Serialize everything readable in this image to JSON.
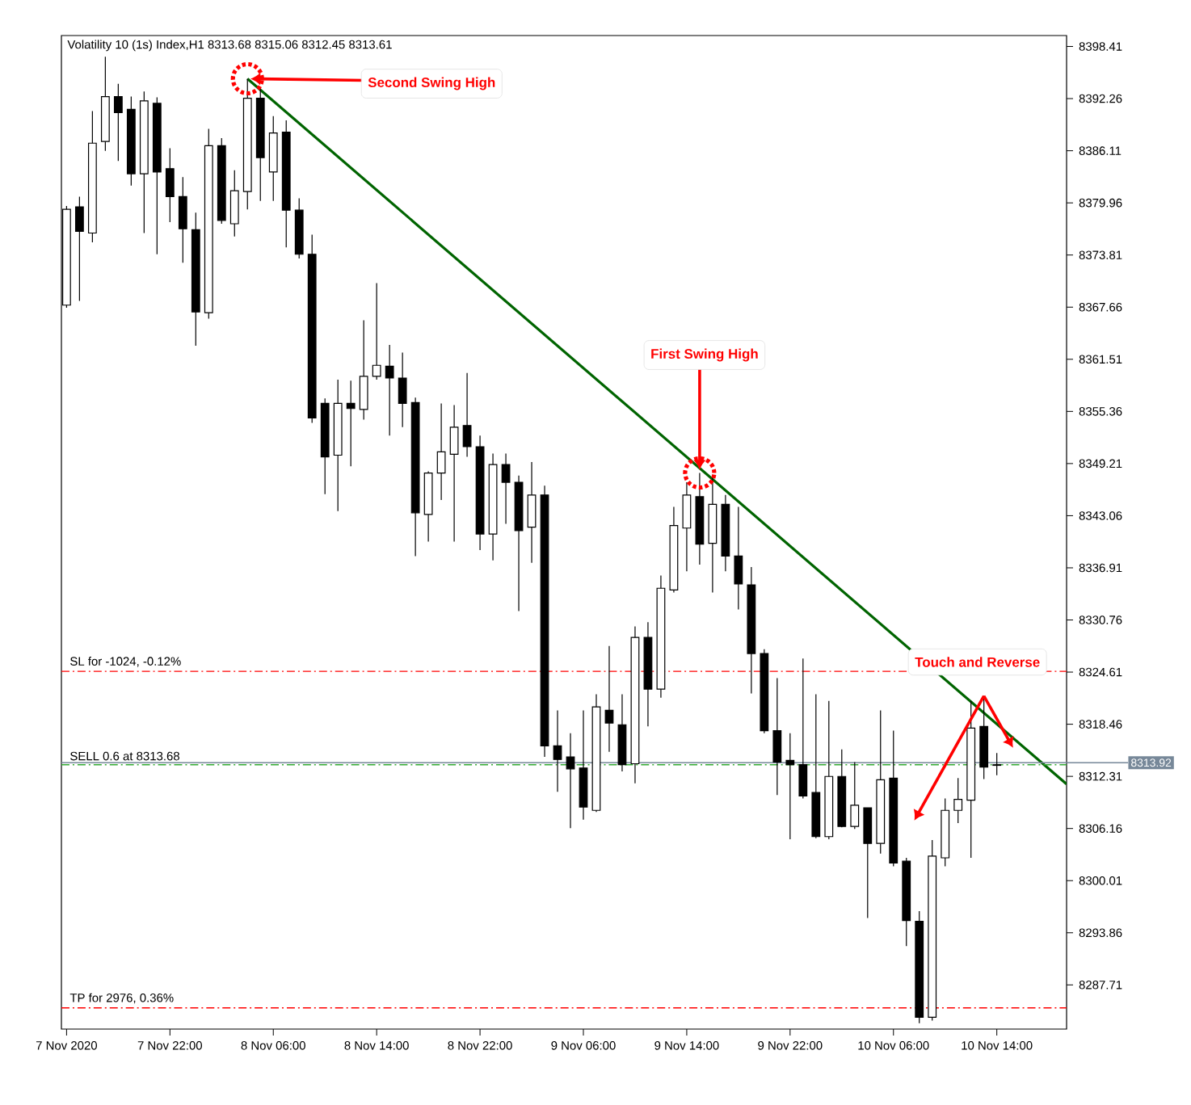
{
  "chart_data": {
    "type": "candlestick",
    "title": "Volatility 10 (1s) Index,H1  8313.68 8315.06 8312.45 8313.61",
    "x": [
      "2020-11-07T14:00",
      "2020-11-07T15:00",
      "2020-11-07T16:00",
      "2020-11-07T17:00",
      "2020-11-07T18:00",
      "2020-11-07T19:00",
      "2020-11-07T20:00",
      "2020-11-07T21:00",
      "2020-11-07T22:00",
      "2020-11-07T23:00",
      "2020-11-08T00:00",
      "2020-11-08T01:00",
      "2020-11-08T02:00",
      "2020-11-08T03:00",
      "2020-11-08T04:00",
      "2020-11-08T05:00",
      "2020-11-08T06:00",
      "2020-11-08T07:00",
      "2020-11-08T08:00",
      "2020-11-08T09:00",
      "2020-11-08T10:00",
      "2020-11-08T11:00",
      "2020-11-08T12:00",
      "2020-11-08T13:00",
      "2020-11-08T14:00",
      "2020-11-08T15:00",
      "2020-11-08T16:00",
      "2020-11-08T17:00",
      "2020-11-08T18:00",
      "2020-11-08T19:00",
      "2020-11-08T20:00",
      "2020-11-08T21:00",
      "2020-11-08T22:00",
      "2020-11-08T23:00",
      "2020-11-09T00:00",
      "2020-11-09T01:00",
      "2020-11-09T02:00",
      "2020-11-09T03:00",
      "2020-11-09T04:00",
      "2020-11-09T05:00",
      "2020-11-09T06:00",
      "2020-11-09T07:00",
      "2020-11-09T08:00",
      "2020-11-09T09:00",
      "2020-11-09T10:00",
      "2020-11-09T11:00",
      "2020-11-09T12:00",
      "2020-11-09T13:00",
      "2020-11-09T14:00",
      "2020-11-09T15:00",
      "2020-11-09T16:00",
      "2020-11-09T17:00",
      "2020-11-09T18:00",
      "2020-11-09T19:00",
      "2020-11-09T20:00",
      "2020-11-09T21:00",
      "2020-11-09T22:00",
      "2020-11-09T23:00",
      "2020-11-10T00:00",
      "2020-11-10T01:00",
      "2020-11-10T02:00",
      "2020-11-10T03:00",
      "2020-11-10T04:00",
      "2020-11-10T05:00",
      "2020-11-10T06:00",
      "2020-11-10T07:00",
      "2020-11-10T08:00",
      "2020-11-10T09:00",
      "2020-11-10T10:00",
      "2020-11-10T11:00",
      "2020-11-10T12:00",
      "2020-11-10T13:00",
      "2020-11-10T14:00"
    ],
    "ohlc": [
      [
        8367.9,
        8379.6,
        8367.6,
        8379.2
      ],
      [
        8379.5,
        8380.7,
        8368.4,
        8376.6
      ],
      [
        8376.4,
        8390.8,
        8375.3,
        8387.0
      ],
      [
        8387.2,
        8397.2,
        8386.1,
        8392.5
      ],
      [
        8392.5,
        8394.0,
        8384.9,
        8390.6
      ],
      [
        8391.0,
        8392.5,
        8382.0,
        8383.4
      ],
      [
        8383.4,
        8393.1,
        8376.4,
        8392.0
      ],
      [
        8391.7,
        8392.4,
        8373.9,
        8383.6
      ],
      [
        8384.0,
        8386.4,
        8377.7,
        8380.7
      ],
      [
        8380.7,
        8383.0,
        8372.9,
        8376.9
      ],
      [
        8376.8,
        8378.8,
        8363.1,
        8367.1
      ],
      [
        8367.0,
        8388.7,
        8366.3,
        8386.7
      ],
      [
        8386.7,
        8387.6,
        8377.5,
        8377.9
      ],
      [
        8377.5,
        8383.8,
        8376.0,
        8381.4
      ],
      [
        8381.3,
        8394.6,
        8379.2,
        8392.3
      ],
      [
        8392.3,
        8393.6,
        8380.2,
        8385.3
      ],
      [
        8383.6,
        8390.2,
        8380.2,
        8388.2
      ],
      [
        8388.3,
        8389.7,
        8374.7,
        8379.1
      ],
      [
        8379.1,
        8380.5,
        8373.4,
        8373.9
      ],
      [
        8373.9,
        8376.2,
        8354.0,
        8354.6
      ],
      [
        8356.3,
        8356.9,
        8345.6,
        8350.0
      ],
      [
        8350.2,
        8359.1,
        8343.6,
        8356.3
      ],
      [
        8356.3,
        8359.0,
        8348.9,
        8355.7
      ],
      [
        8355.6,
        8366.1,
        8354.4,
        8359.5
      ],
      [
        8359.5,
        8370.5,
        8359.1,
        8360.8
      ],
      [
        8360.7,
        8363.2,
        8352.5,
        8359.3
      ],
      [
        8359.3,
        8362.3,
        8353.5,
        8356.3
      ],
      [
        8356.4,
        8357.0,
        8338.3,
        8343.4
      ],
      [
        8343.2,
        8348.3,
        8340.0,
        8348.1
      ],
      [
        8348.1,
        8356.3,
        8344.9,
        8350.6
      ],
      [
        8350.3,
        8356.1,
        8340.0,
        8353.5
      ],
      [
        8353.7,
        8359.9,
        8350.0,
        8351.2
      ],
      [
        8351.2,
        8352.5,
        8339.0,
        8340.9
      ],
      [
        8340.9,
        8350.4,
        8337.8,
        8349.1
      ],
      [
        8349.1,
        8350.4,
        8342.1,
        8347.0
      ],
      [
        8347.0,
        8347.8,
        8331.8,
        8341.3
      ],
      [
        8341.7,
        8349.4,
        8337.5,
        8345.5
      ],
      [
        8345.5,
        8346.6,
        8314.6,
        8315.9
      ],
      [
        8315.9,
        8320.1,
        8310.5,
        8314.3
      ],
      [
        8314.6,
        8317.4,
        8306.2,
        8313.2
      ],
      [
        8313.3,
        8320.1,
        8307.2,
        8308.7
      ],
      [
        8308.3,
        8322.0,
        8308.1,
        8320.5
      ],
      [
        8320.1,
        8327.7,
        8315.2,
        8318.6
      ],
      [
        8318.4,
        8322.0,
        8312.9,
        8313.7
      ],
      [
        8313.8,
        8330.0,
        8311.5,
        8328.7
      ],
      [
        8328.7,
        8330.5,
        8318.2,
        8322.6
      ],
      [
        8322.6,
        8336.0,
        8321.6,
        8334.5
      ],
      [
        8334.3,
        8344.1,
        8334.0,
        8341.9
      ],
      [
        8341.6,
        8347.0,
        8336.5,
        8345.5
      ],
      [
        8345.3,
        8348.1,
        8337.3,
        8339.7
      ],
      [
        8339.8,
        8347.9,
        8334.0,
        8344.4
      ],
      [
        8344.4,
        8345.5,
        8336.5,
        8338.3
      ],
      [
        8338.3,
        8344.1,
        8332.0,
        8335.0
      ],
      [
        8334.9,
        8337.0,
        8322.1,
        8326.8
      ],
      [
        8326.8,
        8327.3,
        8317.4,
        8317.7
      ],
      [
        8317.7,
        8323.9,
        8310.1,
        8314.0
      ],
      [
        8314.2,
        8317.4,
        8304.9,
        8313.7
      ],
      [
        8313.7,
        8326.2,
        8309.7,
        8310.0
      ],
      [
        8310.4,
        8322.0,
        8305.0,
        8305.2
      ],
      [
        8305.2,
        8321.2,
        8304.9,
        8312.3
      ],
      [
        8312.3,
        8315.5,
        8306.3,
        8306.4
      ],
      [
        8306.4,
        8314.0,
        8306.1,
        8308.9
      ],
      [
        8308.6,
        8308.6,
        8295.6,
        8304.4
      ],
      [
        8304.4,
        8320.1,
        8303.2,
        8311.9
      ],
      [
        8312.1,
        8317.7,
        8301.7,
        8302.1
      ],
      [
        8302.3,
        8302.7,
        8292.3,
        8295.3
      ],
      [
        8295.2,
        8296.4,
        8283.2,
        8283.9
      ],
      [
        8283.9,
        8304.8,
        8283.5,
        8302.9
      ],
      [
        8302.7,
        8309.7,
        8301.7,
        8308.3
      ],
      [
        8308.3,
        8312.1,
        8306.8,
        8309.6
      ],
      [
        8309.5,
        8321.2,
        8302.7,
        8318.0
      ],
      [
        8318.2,
        8321.8,
        8312.0,
        8313.4
      ],
      [
        8313.68,
        8315.06,
        8312.45,
        8313.61
      ]
    ],
    "series": [
      {
        "type": "line",
        "x": [
          "2020-11-08T04:00",
          "2020-11-10T19:24"
        ],
        "values": [
          8394.6,
          8311.4
        ],
        "color": "#006400"
      }
    ],
    "xlim": [
      "2020-11-07T13:36",
      "2020-11-10T19:24"
    ],
    "xticks": [
      {
        "value": "2020-11-07T14:00",
        "label": "7 Nov 2020"
      },
      {
        "value": "2020-11-07T22:00",
        "label": "7 Nov 22:00"
      },
      {
        "value": "2020-11-08T06:00",
        "label": "8 Nov 06:00"
      },
      {
        "value": "2020-11-08T14:00",
        "label": "8 Nov 14:00"
      },
      {
        "value": "2020-11-08T22:00",
        "label": "8 Nov 22:00"
      },
      {
        "value": "2020-11-09T06:00",
        "label": "9 Nov 06:00"
      },
      {
        "value": "2020-11-09T14:00",
        "label": "9 Nov 14:00"
      },
      {
        "value": "2020-11-09T22:00",
        "label": "9 Nov 22:00"
      },
      {
        "value": "2020-11-10T06:00",
        "label": "10 Nov 06:00"
      },
      {
        "value": "2020-11-10T14:00",
        "label": "10 Nov 14:00"
      }
    ],
    "ylim": [
      8282.5,
      8399.7
    ],
    "yticks": [
      8287.71,
      8293.86,
      8300.01,
      8306.16,
      8312.31,
      8318.46,
      8324.61,
      8330.76,
      8336.91,
      8343.06,
      8349.21,
      8355.36,
      8361.51,
      8367.66,
      8373.81,
      8379.96,
      8386.11,
      8392.26,
      8398.41
    ],
    "ref_lines": [
      {
        "axis": "y",
        "value": 8324.7,
        "label": "SL for -1024, -0.12%",
        "color": "#ff0000",
        "line_style": "dashed"
      },
      {
        "axis": "y",
        "value": 8313.68,
        "label": "SELL 0.6 at 8313.68",
        "color": "#33aa33",
        "line_style": "dashed"
      },
      {
        "axis": "y",
        "value": 8313.92,
        "label": "8313.92",
        "color": "#778899",
        "line_style": "solid"
      },
      {
        "axis": "y",
        "value": 8285.0,
        "label": "TP for 2976, 0.36%",
        "color": "#ff0000",
        "line_style": "dashed"
      }
    ],
    "annotations": [
      {
        "text": "Second Swing High",
        "x": "2020-11-08T04:00",
        "y": 8394.6
      },
      {
        "text": "First Swing High",
        "x": "2020-11-09T15:00",
        "y": 8348.1
      },
      {
        "text": "Touch and Reverse",
        "x": "2020-11-10T13:00",
        "y": 8321.8
      }
    ]
  }
}
